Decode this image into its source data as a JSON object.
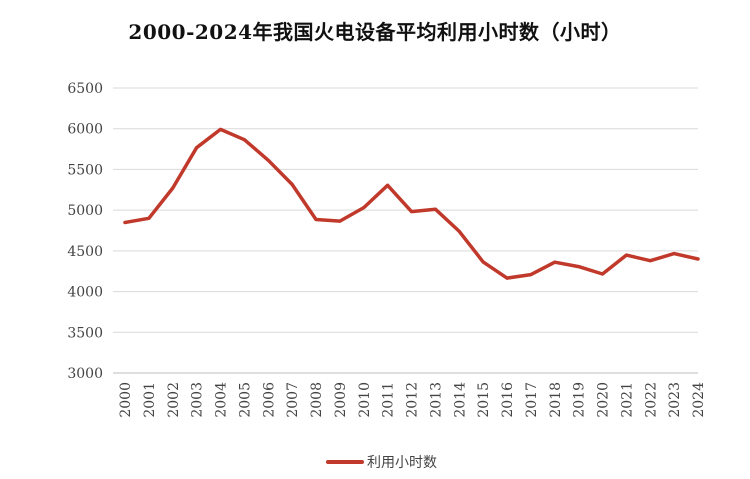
{
  "chart_data": {
    "type": "line",
    "title": "2000-2024年我国火电设备平均利用小时数（小时）",
    "xlabel": "",
    "ylabel": "",
    "ylim": [
      3000,
      6500
    ],
    "yticks": [
      3000,
      3500,
      4000,
      4500,
      5000,
      5500,
      6000,
      6500
    ],
    "grid": "horizontal",
    "legend_position": "bottom",
    "x": [
      "2000",
      "2001",
      "2002",
      "2003",
      "2004",
      "2005",
      "2006",
      "2007",
      "2008",
      "2009",
      "2010",
      "2011",
      "2012",
      "2013",
      "2014",
      "2015",
      "2016",
      "2017",
      "2018",
      "2019",
      "2020",
      "2021",
      "2022",
      "2023",
      "2024"
    ],
    "series": [
      {
        "name": "利用小时数",
        "color": "#c0392b",
        "values": [
          4848,
          4900,
          5272,
          5767,
          5991,
          5865,
          5612,
          5316,
          4885,
          4865,
          5031,
          5305,
          4982,
          5012,
          4739,
          4364,
          4165,
          4209,
          4361,
          4307,
          4216,
          4448,
          4379,
          4466,
          4400
        ]
      }
    ]
  }
}
